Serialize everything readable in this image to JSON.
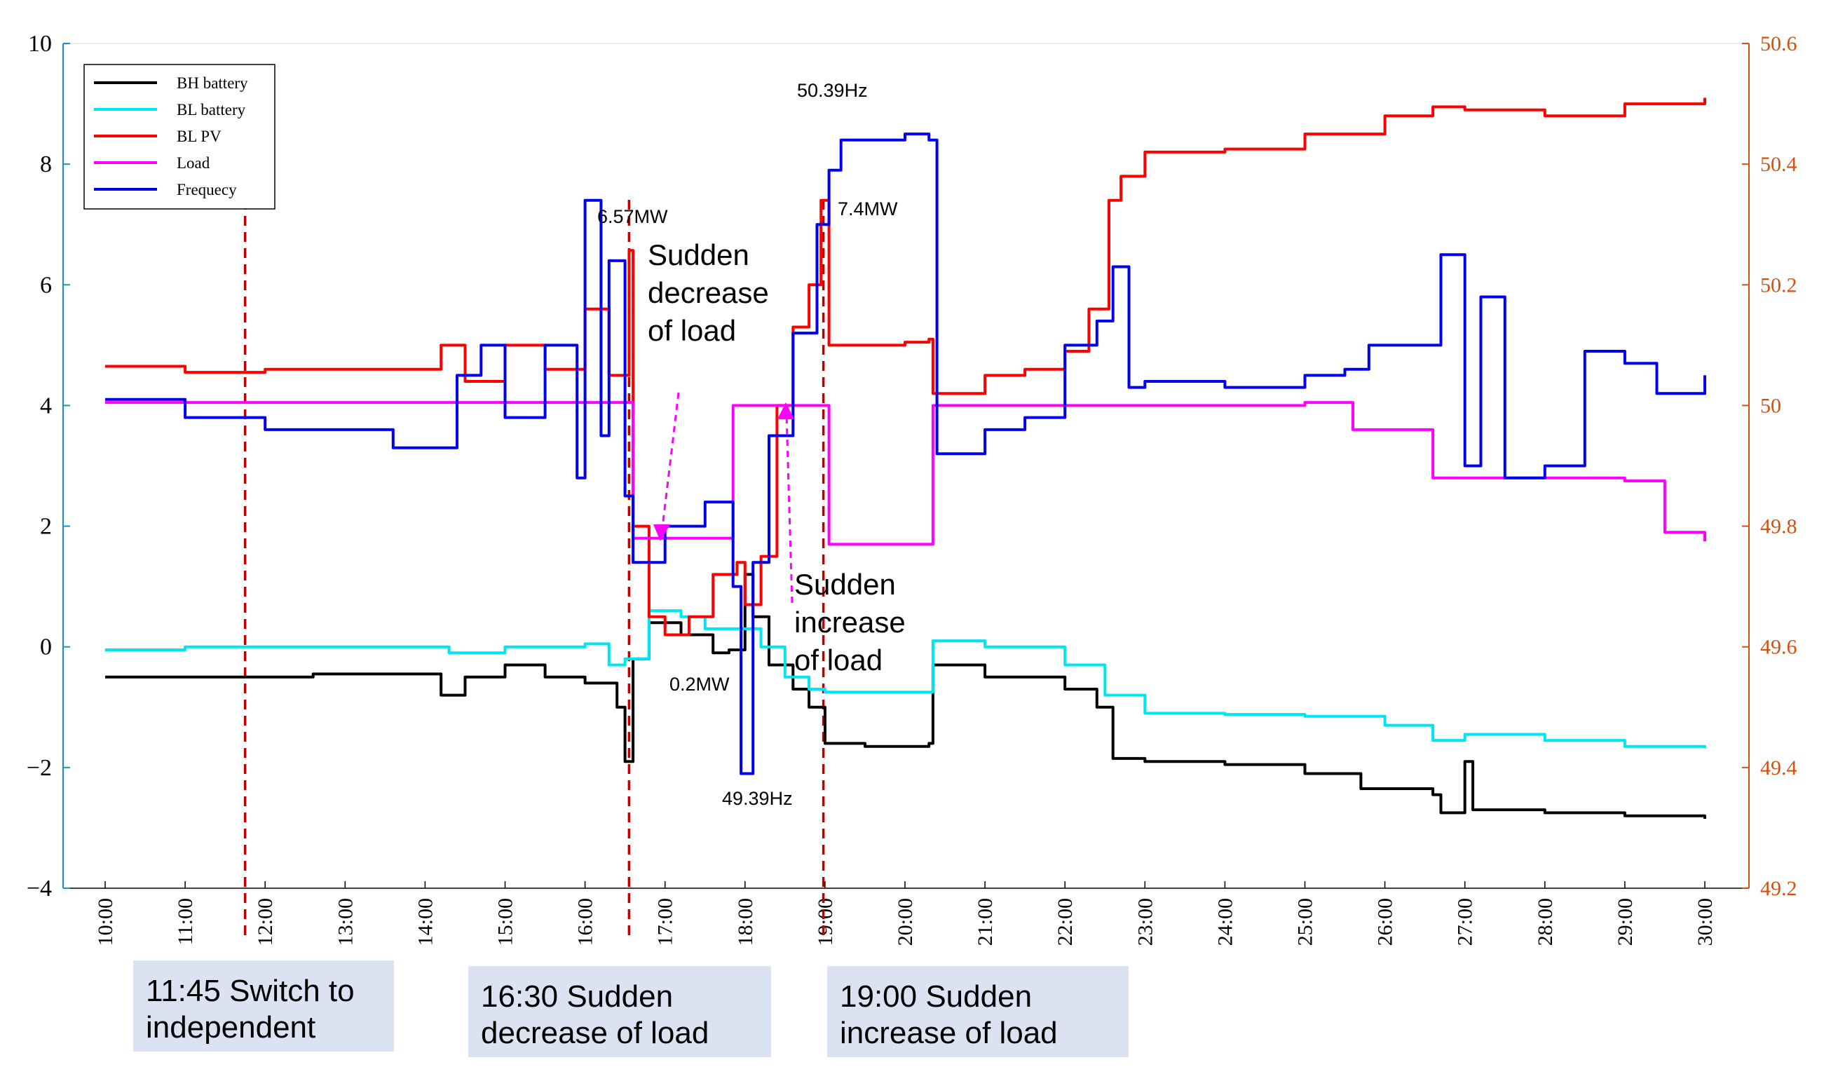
{
  "chart_data": {
    "type": "line",
    "x_ticks": [
      "10:00",
      "11:00",
      "12:00",
      "13:00",
      "14:00",
      "15:00",
      "16:00",
      "17:00",
      "18:00",
      "19:00",
      "20:00",
      "21:00",
      "22:00",
      "23:00",
      "24:00",
      "25:00",
      "26:00",
      "27:00",
      "28:00",
      "29:00",
      "30:00"
    ],
    "xlim": [
      10,
      30
    ],
    "y_left": {
      "ticks": [
        "10",
        "8",
        "6",
        "4",
        "2",
        "0",
        "−2",
        "−4"
      ],
      "ylim": [
        -4,
        10
      ]
    },
    "y_right": {
      "ticks": [
        "50.6",
        "50.4",
        "50.2",
        "50",
        "49.8",
        "49.6",
        "49.4",
        "49.2"
      ],
      "ylim": [
        49.2,
        50.6
      ],
      "color": "#d4500f"
    },
    "legend": {
      "position": "top-left",
      "entries": [
        "BH battery",
        "BL battery",
        "BL PV",
        "Load",
        "Frequecy"
      ]
    },
    "series": [
      {
        "name": "BH battery",
        "color": "#000000",
        "axis": "left",
        "points": [
          [
            10,
            -0.5
          ],
          [
            11.7,
            -0.5
          ],
          [
            12.6,
            -0.45
          ],
          [
            14,
            -0.45
          ],
          [
            14.2,
            -0.8
          ],
          [
            14.5,
            -0.5
          ],
          [
            15,
            -0.3
          ],
          [
            15.5,
            -0.5
          ],
          [
            16,
            -0.6
          ],
          [
            16.4,
            -1.0
          ],
          [
            16.5,
            -1.9
          ],
          [
            16.6,
            -0.2
          ],
          [
            16.8,
            0.4
          ],
          [
            17.2,
            0.2
          ],
          [
            17.6,
            -0.1
          ],
          [
            17.8,
            -0.05
          ],
          [
            18,
            1.2
          ],
          [
            18.1,
            0.5
          ],
          [
            18.3,
            -0.3
          ],
          [
            18.6,
            -0.7
          ],
          [
            18.8,
            -1.0
          ],
          [
            19,
            -1.6
          ],
          [
            19.5,
            -1.65
          ],
          [
            20.3,
            -1.6
          ],
          [
            20.35,
            -0.3
          ],
          [
            21,
            -0.5
          ],
          [
            22,
            -0.7
          ],
          [
            22.4,
            -1.0
          ],
          [
            22.6,
            -1.85
          ],
          [
            23,
            -1.9
          ],
          [
            24,
            -1.95
          ],
          [
            25,
            -2.1
          ],
          [
            25.7,
            -2.35
          ],
          [
            26.6,
            -2.45
          ],
          [
            26.7,
            -2.75
          ],
          [
            27,
            -1.9
          ],
          [
            27.1,
            -2.7
          ],
          [
            28,
            -2.75
          ],
          [
            29,
            -2.8
          ],
          [
            30,
            -2.85
          ]
        ]
      },
      {
        "name": "BL battery",
        "color": "#00e5ee",
        "axis": "left",
        "points": [
          [
            10,
            -0.05
          ],
          [
            11,
            0.0
          ],
          [
            12,
            0.0
          ],
          [
            14,
            0.0
          ],
          [
            14.3,
            -0.1
          ],
          [
            15,
            0.0
          ],
          [
            15.5,
            0.0
          ],
          [
            16,
            0.05
          ],
          [
            16.3,
            -0.3
          ],
          [
            16.5,
            -0.2
          ],
          [
            16.8,
            0.6
          ],
          [
            17.2,
            0.5
          ],
          [
            17.5,
            0.3
          ],
          [
            18,
            0.3
          ],
          [
            18.2,
            0.0
          ],
          [
            18.5,
            -0.5
          ],
          [
            18.8,
            -0.7
          ],
          [
            19,
            -0.75
          ],
          [
            20.3,
            -0.75
          ],
          [
            20.35,
            0.1
          ],
          [
            21,
            0.0
          ],
          [
            22,
            -0.3
          ],
          [
            22.5,
            -0.8
          ],
          [
            23,
            -1.1
          ],
          [
            24,
            -1.12
          ],
          [
            25,
            -1.15
          ],
          [
            26,
            -1.3
          ],
          [
            26.6,
            -1.55
          ],
          [
            27,
            -1.45
          ],
          [
            28,
            -1.55
          ],
          [
            29,
            -1.65
          ],
          [
            30,
            -1.68
          ]
        ]
      },
      {
        "name": "BL PV",
        "color": "#ff0000",
        "axis": "left",
        "points": [
          [
            10,
            4.65
          ],
          [
            11,
            4.55
          ],
          [
            12,
            4.6
          ],
          [
            14,
            4.6
          ],
          [
            14.2,
            5.0
          ],
          [
            14.5,
            4.4
          ],
          [
            15,
            5.0
          ],
          [
            15.5,
            4.6
          ],
          [
            16,
            5.6
          ],
          [
            16.3,
            4.5
          ],
          [
            16.55,
            6.57
          ],
          [
            16.6,
            2.0
          ],
          [
            16.8,
            0.5
          ],
          [
            17,
            0.2
          ],
          [
            17.3,
            0.5
          ],
          [
            17.6,
            1.2
          ],
          [
            17.9,
            1.4
          ],
          [
            18,
            0.7
          ],
          [
            18.2,
            1.5
          ],
          [
            18.4,
            4.0
          ],
          [
            18.6,
            5.3
          ],
          [
            18.8,
            6.0
          ],
          [
            18.95,
            7.4
          ],
          [
            19.05,
            5.0
          ],
          [
            20,
            5.05
          ],
          [
            20.3,
            5.1
          ],
          [
            20.35,
            4.2
          ],
          [
            21,
            4.5
          ],
          [
            21.5,
            4.6
          ],
          [
            22,
            4.9
          ],
          [
            22.3,
            5.6
          ],
          [
            22.55,
            7.4
          ],
          [
            22.7,
            7.8
          ],
          [
            23,
            8.2
          ],
          [
            24,
            8.25
          ],
          [
            25,
            8.5
          ],
          [
            26,
            8.8
          ],
          [
            26.6,
            8.95
          ],
          [
            27,
            8.9
          ],
          [
            28,
            8.8
          ],
          [
            29,
            9.0
          ],
          [
            30,
            9.1
          ]
        ]
      },
      {
        "name": "Load",
        "color": "#ff00ff",
        "axis": "left",
        "points": [
          [
            10,
            4.05
          ],
          [
            12,
            4.05
          ],
          [
            16,
            4.05
          ],
          [
            16.55,
            4.05
          ],
          [
            16.6,
            1.8
          ],
          [
            17.8,
            1.8
          ],
          [
            17.85,
            4.0
          ],
          [
            19,
            4.0
          ],
          [
            19.05,
            1.7
          ],
          [
            20.3,
            1.7
          ],
          [
            20.35,
            4.0
          ],
          [
            25,
            4.05
          ],
          [
            25.6,
            3.6
          ],
          [
            26.6,
            2.8
          ],
          [
            27,
            2.8
          ],
          [
            29,
            2.75
          ],
          [
            29.5,
            1.9
          ],
          [
            30,
            1.75
          ]
        ]
      },
      {
        "name": "Frequecy",
        "color": "#0000ee",
        "axis": "right",
        "points": [
          [
            10,
            50.01
          ],
          [
            11,
            49.98
          ],
          [
            12,
            49.96
          ],
          [
            13,
            49.96
          ],
          [
            13.6,
            49.93
          ],
          [
            14.2,
            49.93
          ],
          [
            14.4,
            50.05
          ],
          [
            14.7,
            50.1
          ],
          [
            15,
            49.98
          ],
          [
            15.5,
            50.1
          ],
          [
            15.9,
            49.88
          ],
          [
            16,
            50.34
          ],
          [
            16.2,
            49.95
          ],
          [
            16.3,
            50.24
          ],
          [
            16.5,
            49.85
          ],
          [
            16.6,
            49.74
          ],
          [
            17,
            49.8
          ],
          [
            17.5,
            49.84
          ],
          [
            17.85,
            49.7
          ],
          [
            17.95,
            49.39
          ],
          [
            18.1,
            49.74
          ],
          [
            18.3,
            49.95
          ],
          [
            18.6,
            50.12
          ],
          [
            18.9,
            50.3
          ],
          [
            19.05,
            50.39
          ],
          [
            19.2,
            50.44
          ],
          [
            20,
            50.45
          ],
          [
            20.3,
            50.44
          ],
          [
            20.4,
            49.92
          ],
          [
            21,
            49.96
          ],
          [
            21.5,
            49.98
          ],
          [
            22,
            50.1
          ],
          [
            22.4,
            50.14
          ],
          [
            22.6,
            50.23
          ],
          [
            22.8,
            50.03
          ],
          [
            23,
            50.04
          ],
          [
            24,
            50.03
          ],
          [
            25,
            50.05
          ],
          [
            25.5,
            50.06
          ],
          [
            25.8,
            50.1
          ],
          [
            26.5,
            50.1
          ],
          [
            26.7,
            50.25
          ],
          [
            27,
            49.9
          ],
          [
            27.2,
            50.18
          ],
          [
            27.5,
            49.88
          ],
          [
            28,
            49.9
          ],
          [
            28.5,
            50.09
          ],
          [
            29,
            50.07
          ],
          [
            29.4,
            50.02
          ],
          [
            30,
            50.05
          ]
        ]
      }
    ],
    "vlines": [
      {
        "x": 11.75,
        "color": "#c00000"
      },
      {
        "x": 16.55,
        "color": "#c00000"
      },
      {
        "x": 18.98,
        "color": "#c00000"
      }
    ],
    "annotations": {
      "pv_peak": "6.57MW",
      "pv_peak2": "7.4MW",
      "pv_min": "0.2MW",
      "f_max": "50.39Hz",
      "f_min": "49.39Hz",
      "load_dec_1": "Sudden",
      "load_dec_2": "decrease",
      "load_dec_3": "of load",
      "load_inc_1": "Sudden",
      "load_inc_2": "increase",
      "load_inc_3": "of load"
    }
  },
  "event_boxes": {
    "switch_1": "11:45 Switch to",
    "switch_2": "independent",
    "decrease_1": "16:30 Sudden",
    "decrease_2": "decrease of load",
    "increase_1": "19:00 Sudden",
    "increase_2": "increase of load"
  }
}
